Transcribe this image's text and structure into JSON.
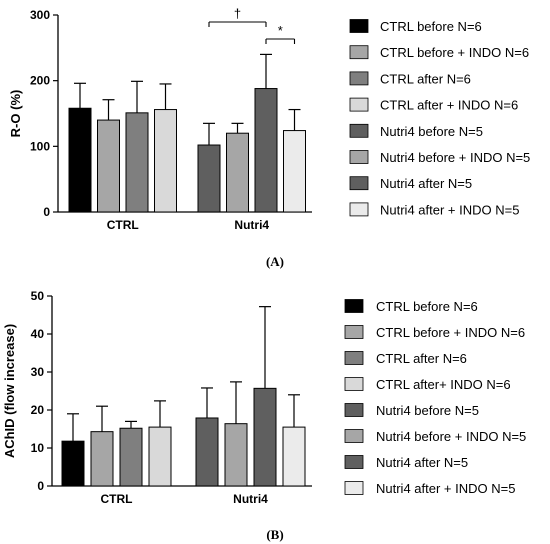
{
  "figure": {
    "panel_a_label": "(A)",
    "panel_b_label": "(B)"
  },
  "chart_data": [
    {
      "type": "bar",
      "panel": "(A)",
      "ylabel": "R-O (%)",
      "xlabel": "",
      "ylim": [
        0,
        300
      ],
      "yticks": [
        0,
        100,
        200,
        300
      ],
      "groups": [
        "CTRL",
        "Nutri4"
      ],
      "series": [
        {
          "name": "CTRL before N=6",
          "color": "#000000",
          "values": [
            158,
            null
          ],
          "errors": [
            38,
            null
          ]
        },
        {
          "name": "CTRL before + INDO N=6",
          "color": "#a6a6a6",
          "values": [
            140,
            null
          ],
          "errors": [
            31,
            null
          ]
        },
        {
          "name": "CTRL after N=6",
          "color": "#7f7f7f",
          "values": [
            151,
            null
          ],
          "errors": [
            48,
            null
          ]
        },
        {
          "name": "CTRL after + INDO N=6",
          "color": "#d9d9d9",
          "values": [
            156,
            null
          ],
          "errors": [
            39,
            null
          ]
        },
        {
          "name": "Nutri4 before N=5",
          "color": "#5f5f5f",
          "values": [
            null,
            102
          ],
          "errors": [
            null,
            33
          ]
        },
        {
          "name": "Nutri4 before + INDO N=5",
          "color": "#a6a6a6",
          "values": [
            null,
            120
          ],
          "errors": [
            null,
            15
          ]
        },
        {
          "name": "Nutri4 after N=5",
          "color": "#5f5f5f",
          "values": [
            null,
            188
          ],
          "errors": [
            null,
            52
          ]
        },
        {
          "name": "Nutri4 after + INDO N=5",
          "color": "#ebebeb",
          "values": [
            null,
            124
          ],
          "errors": [
            null,
            32
          ]
        }
      ],
      "annotations": [
        {
          "text": "†",
          "from_series": 4,
          "to_series": 6,
          "group": 1
        },
        {
          "text": "*",
          "from_series": 6,
          "to_series": 7,
          "group": 1
        }
      ],
      "grid": false,
      "legend_position": "right"
    },
    {
      "type": "bar",
      "panel": "(B)",
      "ylabel": "AChID (flow increase)",
      "xlabel": "",
      "ylim": [
        0,
        50
      ],
      "yticks": [
        0,
        10,
        20,
        30,
        40,
        50
      ],
      "groups": [
        "CTRL",
        "Nutri4"
      ],
      "series": [
        {
          "name": "CTRL before N=6",
          "color": "#000000",
          "values": [
            11.8,
            null
          ],
          "errors": [
            7.2,
            null
          ]
        },
        {
          "name": "CTRL before + INDO N=6",
          "color": "#a6a6a6",
          "values": [
            14.3,
            null
          ],
          "errors": [
            6.7,
            null
          ]
        },
        {
          "name": "CTRL after N=6",
          "color": "#7f7f7f",
          "values": [
            15.2,
            null
          ],
          "errors": [
            1.8,
            null
          ]
        },
        {
          "name": "CTRL after+ INDO N=6",
          "color": "#d9d9d9",
          "values": [
            15.5,
            null
          ],
          "errors": [
            6.9,
            null
          ]
        },
        {
          "name": "Nutri4 before N=5",
          "color": "#5f5f5f",
          "values": [
            null,
            17.9
          ],
          "errors": [
            null,
            7.9
          ]
        },
        {
          "name": "Nutri4 before + INDO N=5",
          "color": "#a6a6a6",
          "values": [
            null,
            16.4
          ],
          "errors": [
            null,
            11.0
          ]
        },
        {
          "name": "Nutri4 after N=5",
          "color": "#5f5f5f",
          "values": [
            null,
            25.7
          ],
          "errors": [
            null,
            21.5
          ]
        },
        {
          "name": "Nutri4 after + INDO N=5",
          "color": "#ebebeb",
          "values": [
            null,
            15.5
          ],
          "errors": [
            null,
            8.5
          ]
        }
      ],
      "grid": false,
      "legend_position": "right"
    }
  ]
}
